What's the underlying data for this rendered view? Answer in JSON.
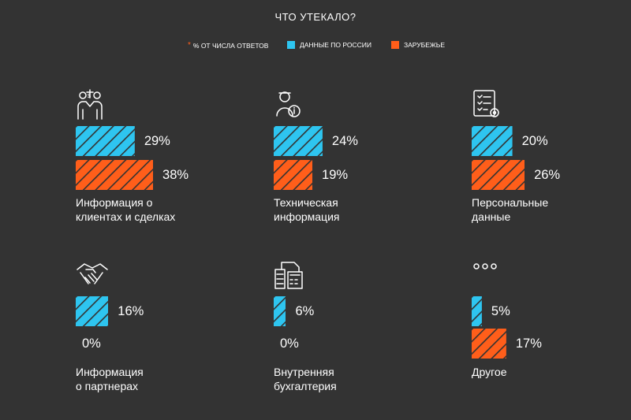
{
  "chart_data": {
    "type": "bar",
    "title": "ЧТО УТЕКАЛО?",
    "legend": {
      "note": "% ОТ ЧИСЛА ОТВЕТОВ",
      "note_marker": "*",
      "position": "top-center"
    },
    "series": [
      {
        "name": "ДАННЫЕ ПО РОССИИ",
        "color": "#2ec5f0",
        "values": [
          29,
          24,
          20,
          16,
          6,
          5
        ]
      },
      {
        "name": "ЗАРУБЕЖЬЕ",
        "color": "#ff5e1a",
        "values": [
          38,
          19,
          26,
          0,
          0,
          17
        ]
      }
    ],
    "categories": [
      {
        "label_lines": [
          "Информация о",
          "клиентах и сделках"
        ],
        "icon": "handshake-deal-people-icon"
      },
      {
        "label_lines": [
          "Техническая",
          "информация"
        ],
        "icon": "user-info-icon"
      },
      {
        "label_lines": [
          "Персональные",
          "данные"
        ],
        "icon": "checklist-gear-icon"
      },
      {
        "label_lines": [
          "Информация",
          "о партнерах"
        ],
        "icon": "handshake-icon"
      },
      {
        "label_lines": [
          "Внутренняя",
          "бухгалтерия"
        ],
        "icon": "accounting-calculator-icon"
      },
      {
        "label_lines": [
          "Другое"
        ],
        "icon": "ellipsis-icon"
      }
    ],
    "value_suffix": "%",
    "grid": false
  }
}
